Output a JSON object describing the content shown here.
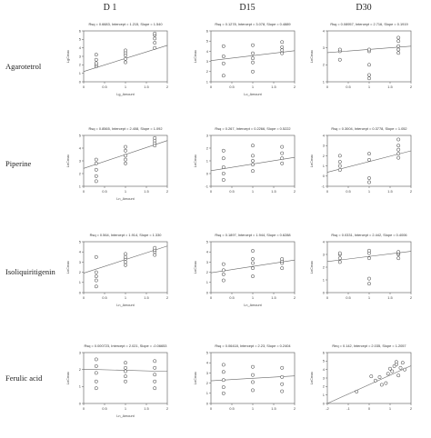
{
  "columns": [
    "D 1",
    "D15",
    "D30"
  ],
  "rows": [
    "Agarotetrol",
    "Piperine",
    "Isoliquiritigenin",
    "Ferulic acid"
  ],
  "chart_data": [
    {
      "type": "scatter",
      "row": "Agarotetrol",
      "col": "D 1",
      "title": "Rsq = 0.6683, Intercept = 1.215, Slope = 1.540",
      "xlabel": "Lg_Amount",
      "ylabel": "LgCmax",
      "xlim": [
        0,
        2
      ],
      "ylim": [
        0,
        6
      ],
      "xticks": [
        0,
        0.5,
        1,
        1.5,
        2
      ],
      "yticks": [
        0,
        1,
        2,
        3,
        4,
        5,
        6
      ],
      "fit": {
        "intercept": 1.215,
        "slope": 1.54
      },
      "points": [
        [
          0.3,
          1.8
        ],
        [
          0.3,
          2.0
        ],
        [
          0.3,
          2.2
        ],
        [
          0.3,
          2.6
        ],
        [
          0.3,
          3.2
        ],
        [
          1.0,
          2.3
        ],
        [
          1.0,
          2.7
        ],
        [
          1.0,
          3.1
        ],
        [
          1.0,
          3.4
        ],
        [
          1.0,
          3.7
        ],
        [
          1.7,
          4.0
        ],
        [
          1.7,
          4.6
        ],
        [
          1.7,
          5.1
        ],
        [
          1.7,
          5.5
        ],
        [
          1.7,
          5.7
        ]
      ]
    },
    {
      "type": "scatter",
      "row": "Agarotetrol",
      "col": "D15",
      "title": "Rsq = 0.1278, Intercept = 3.078, Slope = 0.4889",
      "xlabel": "Lo_Amount",
      "ylabel": "LnCmax",
      "xlim": [
        0,
        2
      ],
      "ylim": [
        1,
        6
      ],
      "xticks": [
        0,
        0.5,
        1,
        1.5,
        2
      ],
      "yticks": [
        1,
        2,
        3,
        4,
        5,
        6
      ],
      "fit": {
        "intercept": 3.078,
        "slope": 0.4889
      },
      "points": [
        [
          0.3,
          1.6
        ],
        [
          0.3,
          2.8
        ],
        [
          0.3,
          3.5
        ],
        [
          0.3,
          4.5
        ],
        [
          1.0,
          2.0
        ],
        [
          1.0,
          2.9
        ],
        [
          1.0,
          3.3
        ],
        [
          1.0,
          3.8
        ],
        [
          1.0,
          4.6
        ],
        [
          1.7,
          3.8
        ],
        [
          1.7,
          4.1
        ],
        [
          1.7,
          4.4
        ],
        [
          1.7,
          4.9
        ]
      ]
    },
    {
      "type": "scatter",
      "row": "Agarotetrol",
      "col": "D30",
      "title": "Rsq = 0.08957, Intercept = 2.716, Slope = 0.1919",
      "xlabel": "",
      "ylabel": "LnCmax",
      "xlim": [
        0,
        2
      ],
      "ylim": [
        1,
        4
      ],
      "xticks": [
        0,
        0.5,
        1,
        1.5,
        2
      ],
      "yticks": [
        1,
        2,
        3,
        4
      ],
      "fit": {
        "intercept": 2.716,
        "slope": 0.1919
      },
      "points": [
        [
          0.3,
          2.3
        ],
        [
          0.3,
          2.8
        ],
        [
          0.3,
          2.9
        ],
        [
          1.0,
          1.2
        ],
        [
          1.0,
          1.4
        ],
        [
          1.0,
          2.0
        ],
        [
          1.0,
          2.8
        ],
        [
          1.0,
          2.9
        ],
        [
          1.7,
          2.7
        ],
        [
          1.7,
          2.9
        ],
        [
          1.7,
          3.1
        ],
        [
          1.7,
          3.4
        ],
        [
          1.7,
          3.6
        ]
      ]
    },
    {
      "type": "scatter",
      "row": "Piperine",
      "col": "D 1",
      "title": "Rsq = 0.8565, Intercept = 2.408, Slope = 1.092",
      "xlabel": "Ln_Amount",
      "ylabel": "LnCmax",
      "xlim": [
        0,
        2
      ],
      "ylim": [
        1,
        5
      ],
      "xticks": [
        0,
        0.5,
        1,
        1.5,
        2
      ],
      "yticks": [
        1,
        2,
        3,
        4,
        5
      ],
      "fit": {
        "intercept": 2.408,
        "slope": 1.092
      },
      "points": [
        [
          0.3,
          1.4
        ],
        [
          0.3,
          1.8
        ],
        [
          0.3,
          2.3
        ],
        [
          0.3,
          2.8
        ],
        [
          0.3,
          3.1
        ],
        [
          1.0,
          2.8
        ],
        [
          1.0,
          3.1
        ],
        [
          1.0,
          3.4
        ],
        [
          1.0,
          3.8
        ],
        [
          1.0,
          4.1
        ],
        [
          1.7,
          4.2
        ],
        [
          1.7,
          4.4
        ],
        [
          1.7,
          4.6
        ],
        [
          1.7,
          4.8
        ]
      ]
    },
    {
      "type": "scatter",
      "row": "Piperine",
      "col": "D15",
      "title": "Rsq = 0.267, Intercept = 0.2266, Slope = 0.5222",
      "xlabel": "",
      "ylabel": "LnCmax",
      "xlim": [
        0,
        2
      ],
      "ylim": [
        -1,
        3
      ],
      "xticks": [
        0,
        0.5,
        1,
        1.5,
        2
      ],
      "yticks": [
        -1,
        0,
        1,
        2,
        3
      ],
      "fit": {
        "intercept": 0.2266,
        "slope": 0.5222
      },
      "points": [
        [
          0.3,
          -0.5
        ],
        [
          0.3,
          0.0
        ],
        [
          0.3,
          0.5
        ],
        [
          0.3,
          1.2
        ],
        [
          0.3,
          1.8
        ],
        [
          1.0,
          0.2
        ],
        [
          1.0,
          0.7
        ],
        [
          1.0,
          1.0
        ],
        [
          1.0,
          1.4
        ],
        [
          1.0,
          2.2
        ],
        [
          1.7,
          0.8
        ],
        [
          1.7,
          1.2
        ],
        [
          1.7,
          1.6
        ],
        [
          1.7,
          2.1
        ]
      ]
    },
    {
      "type": "scatter",
      "row": "Piperine",
      "col": "D30",
      "title": "Rsq = 0.3004, Intercept = 0.3778, Slope = 1.052",
      "xlabel": "",
      "ylabel": "LnCmax",
      "xlim": [
        0,
        2
      ],
      "ylim": [
        -1,
        4
      ],
      "xticks": [
        0,
        0.5,
        1,
        1.5,
        2
      ],
      "yticks": [
        -1,
        0,
        1,
        2,
        3,
        4
      ],
      "fit": {
        "intercept": 0.3778,
        "slope": 1.052
      },
      "points": [
        [
          0.3,
          0.6
        ],
        [
          0.3,
          1.0
        ],
        [
          0.3,
          1.4
        ],
        [
          0.3,
          2.0
        ],
        [
          1.0,
          -0.6
        ],
        [
          1.0,
          -0.2
        ],
        [
          1.0,
          1.6
        ],
        [
          1.0,
          2.2
        ],
        [
          1.7,
          1.8
        ],
        [
          1.7,
          2.2
        ],
        [
          1.7,
          2.6
        ],
        [
          1.7,
          3.0
        ],
        [
          1.7,
          3.6
        ]
      ]
    },
    {
      "type": "scatter",
      "row": "Isoliquiritigenin",
      "col": "D 1",
      "title": "Rsq = 0.564, Intercept = 1.914, Slope = 1.330",
      "xlabel": "Ln_Amount",
      "ylabel": "LnCmax",
      "xlim": [
        0,
        2
      ],
      "ylim": [
        0,
        5
      ],
      "xticks": [
        0,
        0.5,
        1,
        1.5,
        2
      ],
      "yticks": [
        0,
        1,
        2,
        3,
        4,
        5
      ],
      "fit": {
        "intercept": 1.914,
        "slope": 1.33
      },
      "points": [
        [
          0.3,
          0.6
        ],
        [
          0.3,
          1.2
        ],
        [
          0.3,
          1.6
        ],
        [
          0.3,
          2.0
        ],
        [
          0.3,
          3.5
        ],
        [
          1.0,
          2.7
        ],
        [
          1.0,
          3.0
        ],
        [
          1.0,
          3.3
        ],
        [
          1.0,
          3.5
        ],
        [
          1.0,
          3.8
        ],
        [
          1.7,
          3.7
        ],
        [
          1.7,
          4.0
        ],
        [
          1.7,
          4.2
        ],
        [
          1.7,
          4.4
        ]
      ]
    },
    {
      "type": "scatter",
      "row": "Isoliquiritigenin",
      "col": "D15",
      "title": "Rsq = 0.1897, Intercept = 1.944, Slope = 0.6288",
      "xlabel": "Ln_Amount",
      "ylabel": "LnCmax",
      "xlim": [
        0,
        2
      ],
      "ylim": [
        0,
        5
      ],
      "xticks": [
        0,
        0.5,
        1,
        1.5,
        2
      ],
      "yticks": [
        0,
        1,
        2,
        3,
        4,
        5
      ],
      "fit": {
        "intercept": 1.944,
        "slope": 0.6288
      },
      "points": [
        [
          0.3,
          1.2
        ],
        [
          0.3,
          1.8
        ],
        [
          0.3,
          2.2
        ],
        [
          0.3,
          2.8
        ],
        [
          1.0,
          1.6
        ],
        [
          1.0,
          2.4
        ],
        [
          1.0,
          2.9
        ],
        [
          1.0,
          3.3
        ],
        [
          1.0,
          4.1
        ],
        [
          1.7,
          2.4
        ],
        [
          1.7,
          2.9
        ],
        [
          1.7,
          3.1
        ],
        [
          1.7,
          3.3
        ]
      ]
    },
    {
      "type": "scatter",
      "row": "Isoliquiritigenin",
      "col": "D30",
      "title": "Rsq = 0.0331, Intercept = 2.442, Slope = 0.4006",
      "xlabel": "",
      "ylabel": "LnCmax",
      "xlim": [
        0,
        2
      ],
      "ylim": [
        0,
        4
      ],
      "xticks": [
        0,
        0.5,
        1,
        1.5,
        2
      ],
      "yticks": [
        0,
        1,
        2,
        3,
        4
      ],
      "fit": {
        "intercept": 2.442,
        "slope": 0.4006
      },
      "points": [
        [
          0.3,
          2.4
        ],
        [
          0.3,
          2.7
        ],
        [
          0.3,
          3.0
        ],
        [
          0.3,
          3.1
        ],
        [
          1.0,
          0.7
        ],
        [
          1.0,
          1.1
        ],
        [
          1.0,
          2.7
        ],
        [
          1.0,
          3.1
        ],
        [
          1.0,
          3.3
        ],
        [
          1.7,
          2.7
        ],
        [
          1.7,
          3.0
        ],
        [
          1.7,
          3.1
        ],
        [
          1.7,
          3.2
        ]
      ]
    },
    {
      "type": "scatter",
      "row": "Ferulic acid",
      "col": "D 1",
      "title": "Rsq = 0.000723, Intercept = 2.021, Slope = -0.06653",
      "xlabel": "Ln_Amount",
      "ylabel": "LnCmax",
      "xlim": [
        0,
        2
      ],
      "ylim": [
        0,
        3
      ],
      "xticks": [
        0,
        0.5,
        1,
        1.5,
        2
      ],
      "yticks": [
        0,
        1,
        2,
        3
      ],
      "fit": {
        "intercept": 2.021,
        "slope": -0.06653
      },
      "points": [
        [
          0.3,
          0.9
        ],
        [
          0.3,
          1.3
        ],
        [
          0.3,
          1.8
        ],
        [
          0.3,
          2.2
        ],
        [
          0.3,
          2.6
        ],
        [
          1.0,
          1.3
        ],
        [
          1.0,
          1.6
        ],
        [
          1.0,
          1.9
        ],
        [
          1.0,
          2.1
        ],
        [
          1.0,
          2.4
        ],
        [
          1.7,
          0.9
        ],
        [
          1.7,
          1.3
        ],
        [
          1.7,
          1.7
        ],
        [
          1.7,
          2.1
        ],
        [
          1.7,
          2.5
        ]
      ]
    },
    {
      "type": "scatter",
      "row": "Ferulic acid",
      "col": "D15",
      "title": "Rsq = 0.06418, Intercept = 2.23, Slope = 0.2404",
      "xlabel": "",
      "ylabel": "LnCmax",
      "xlim": [
        0,
        2
      ],
      "ylim": [
        0,
        5
      ],
      "xticks": [
        0,
        0.5,
        1,
        1.5,
        2
      ],
      "yticks": [
        0,
        1,
        2,
        3,
        4,
        5
      ],
      "fit": {
        "intercept": 2.23,
        "slope": 0.2404
      },
      "points": [
        [
          0.3,
          1.0
        ],
        [
          0.3,
          1.6
        ],
        [
          0.3,
          2.3
        ],
        [
          0.3,
          3.1
        ],
        [
          0.3,
          3.8
        ],
        [
          1.0,
          1.3
        ],
        [
          1.0,
          2.1
        ],
        [
          1.0,
          2.8
        ],
        [
          1.0,
          3.6
        ],
        [
          1.7,
          1.2
        ],
        [
          1.7,
          1.9
        ],
        [
          1.7,
          2.6
        ],
        [
          1.7,
          3.5
        ]
      ]
    },
    {
      "type": "scatter",
      "row": "Ferulic acid",
      "col": "D30",
      "title": "Req = 0.142, Intercept = 2.035, Slope = 1.2057",
      "xlabel": "",
      "ylabel": "LnCmax",
      "xlim": [
        -2,
        2
      ],
      "ylim": [
        0,
        6
      ],
      "xticks": [
        -2,
        -1,
        0,
        1,
        2
      ],
      "yticks": [
        0,
        1,
        2,
        3,
        4,
        5,
        6
      ],
      "fit": {
        "intercept": 2.035,
        "slope": 1.2057
      },
      "points": [
        [
          -0.6,
          1.4
        ],
        [
          0.1,
          3.2
        ],
        [
          0.3,
          2.7
        ],
        [
          0.5,
          3.1
        ],
        [
          0.6,
          2.2
        ],
        [
          0.8,
          2.4
        ],
        [
          0.9,
          3.5
        ],
        [
          1.0,
          4.1
        ],
        [
          1.1,
          3.8
        ],
        [
          1.2,
          4.4
        ],
        [
          1.3,
          4.6
        ],
        [
          1.3,
          4.9
        ],
        [
          1.4,
          3.3
        ],
        [
          1.5,
          4.2
        ],
        [
          1.6,
          4.8
        ],
        [
          1.7,
          4.0
        ]
      ]
    }
  ]
}
